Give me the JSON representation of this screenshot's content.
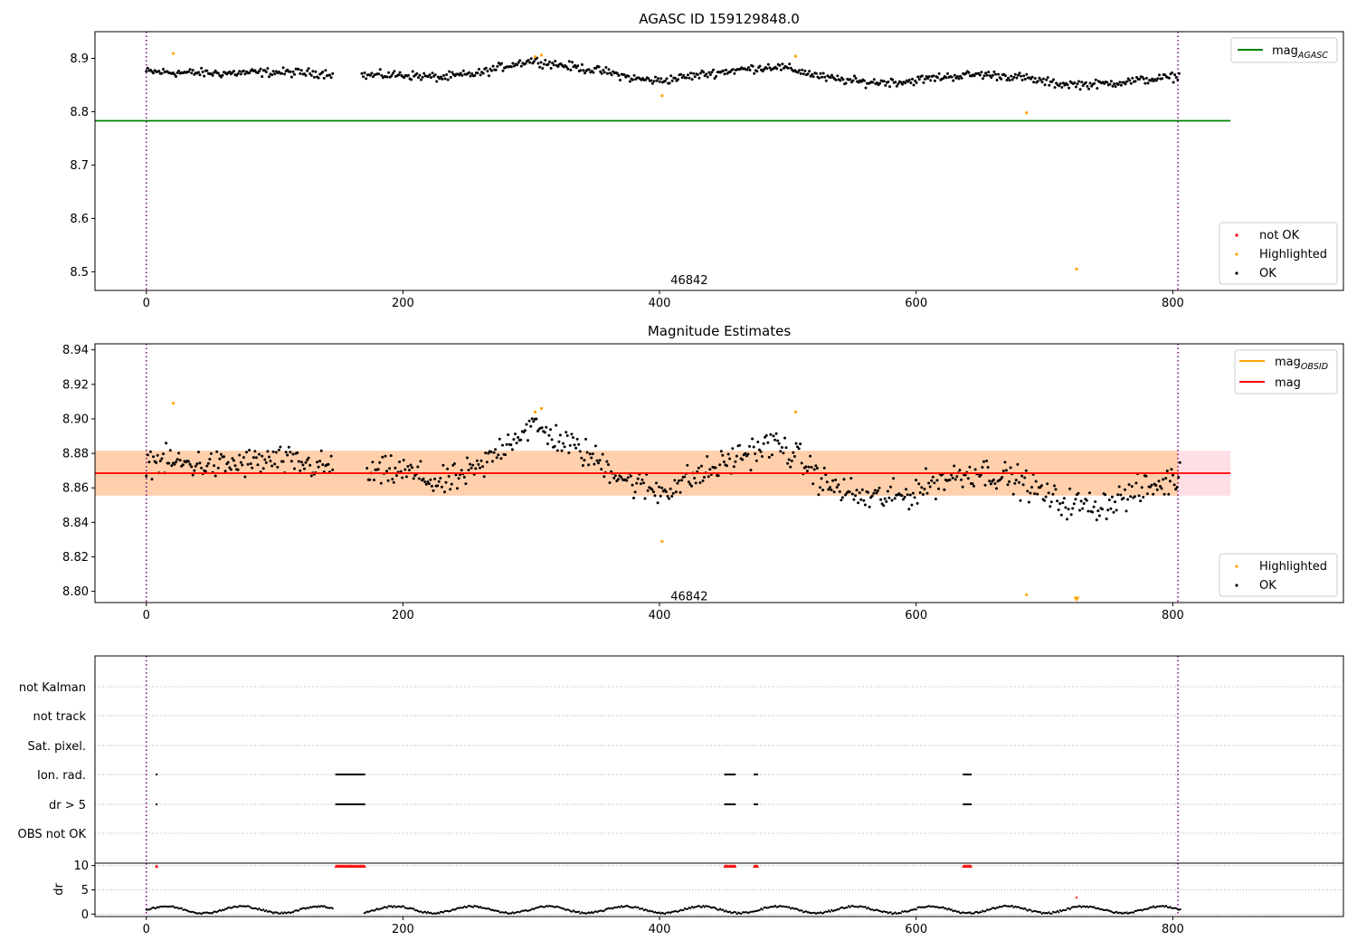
{
  "chart_data": [
    {
      "type": "scatter",
      "title": "AGASC ID 159129848.0",
      "xlabel": "",
      "ylabel": "",
      "xlim": [
        -40,
        933
      ],
      "ylim": [
        8.465,
        8.95
      ],
      "xticks": [
        0,
        200,
        400,
        600,
        800
      ],
      "yticks": [
        8.5,
        8.6,
        8.7,
        8.8,
        8.9
      ],
      "xtick_labels": [
        "0",
        "200",
        "400",
        "600",
        "800"
      ],
      "ytick_labels": [
        "8.5",
        "8.6",
        "8.7",
        "8.8",
        "8.9"
      ],
      "vlines": [
        0,
        804
      ],
      "annotation": {
        "text": "46842",
        "x": 402,
        "y": 8.48
      },
      "hline": {
        "name": "mag_AGASC",
        "y": 8.783,
        "x_range": [
          -40,
          845
        ],
        "color": "#008000"
      },
      "series": [
        {
          "name": "not OK",
          "color": "#ff0000",
          "points": []
        },
        {
          "name": "Highlighted",
          "color": "#ffa500",
          "points": [
            [
              21,
              8.909
            ],
            [
              303,
              8.903
            ],
            [
              308,
              8.906
            ],
            [
              402,
              8.83
            ],
            [
              506,
              8.904
            ],
            [
              686,
              8.798
            ],
            [
              725,
              8.505
            ]
          ]
        },
        {
          "name": "OK",
          "color": "#000000",
          "trend_segments": [
            [
              0,
              146
            ],
            [
              168,
              806
            ]
          ],
          "trend": [
            [
              0,
              8.875
            ],
            [
              30,
              8.873
            ],
            [
              60,
              8.872
            ],
            [
              100,
              8.874
            ],
            [
              140,
              8.872
            ],
            [
              170,
              8.868
            ],
            [
              200,
              8.869
            ],
            [
              230,
              8.864
            ],
            [
              260,
              8.872
            ],
            [
              280,
              8.886
            ],
            [
              300,
              8.896
            ],
            [
              330,
              8.885
            ],
            [
              360,
              8.874
            ],
            [
              380,
              8.862
            ],
            [
              400,
              8.858
            ],
            [
              420,
              8.865
            ],
            [
              440,
              8.872
            ],
            [
              460,
              8.878
            ],
            [
              490,
              8.885
            ],
            [
              510,
              8.876
            ],
            [
              530,
              8.863
            ],
            [
              560,
              8.855
            ],
            [
              590,
              8.856
            ],
            [
              620,
              8.865
            ],
            [
              650,
              8.87
            ],
            [
              680,
              8.865
            ],
            [
              710,
              8.852
            ],
            [
              740,
              8.851
            ],
            [
              770,
              8.858
            ],
            [
              806,
              8.866
            ]
          ],
          "scatter": 0.008,
          "step": 1.1
        }
      ],
      "legends": [
        {
          "position": "top-right",
          "entries": [
            {
              "label": "mag",
              "sub": "AGASC",
              "kind": "line",
              "color": "#008000"
            }
          ]
        },
        {
          "position": "lower-right",
          "entries": [
            {
              "label": "not OK",
              "kind": "dot",
              "color": "#ff0000"
            },
            {
              "label": "Highlighted",
              "kind": "dot",
              "color": "#ffa500"
            },
            {
              "label": "OK",
              "kind": "dot",
              "color": "#000000"
            }
          ]
        }
      ]
    },
    {
      "type": "scatter",
      "title": "Magnitude Estimates",
      "xlabel": "",
      "ylabel": "",
      "xlim": [
        -40,
        933
      ],
      "ylim": [
        8.7935,
        8.9435
      ],
      "xticks": [
        0,
        200,
        400,
        600,
        800
      ],
      "yticks": [
        8.8,
        8.82,
        8.84,
        8.86,
        8.88,
        8.9,
        8.92,
        8.94
      ],
      "xtick_labels": [
        "0",
        "200",
        "400",
        "600",
        "800"
      ],
      "ytick_labels": [
        "8.80",
        "8.82",
        "8.84",
        "8.86",
        "8.88",
        "8.90",
        "8.92",
        "8.94"
      ],
      "vlines": [
        0,
        804
      ],
      "annotation": {
        "text": "46842",
        "x": 402,
        "y": 8.797
      },
      "bands": [
        {
          "y_range": [
            8.8555,
            8.8815
          ],
          "x_range": [
            -40,
            845
          ],
          "color": "#ffc0cb",
          "alpha": 0.5
        },
        {
          "y_range": [
            8.8555,
            8.8815
          ],
          "x_range": [
            -40,
            804
          ],
          "color": "#ffa500",
          "alpha": 0.25
        }
      ],
      "hlines": [
        {
          "name": "mag_OBSID",
          "y": 8.8685,
          "x_range": [
            -40,
            804
          ],
          "color": "#ffa500"
        },
        {
          "name": "mag",
          "y": 8.8685,
          "x_range": [
            -40,
            845
          ],
          "color": "#ff0000"
        }
      ],
      "series": [
        {
          "name": "Highlighted",
          "color": "#ffa500",
          "points": [
            [
              21,
              8.909
            ],
            [
              303,
              8.904
            ],
            [
              308,
              8.906
            ],
            [
              402,
              8.829
            ],
            [
              506,
              8.904
            ],
            [
              686,
              8.798
            ]
          ],
          "markers_below_axis": [
            [
              725,
              8.7935
            ]
          ]
        },
        {
          "name": "OK",
          "color": "#000000",
          "trend_segments": [
            [
              0,
              146
            ],
            [
              172,
              806
            ]
          ],
          "trend": [
            [
              0,
              8.876
            ],
            [
              30,
              8.874
            ],
            [
              60,
              8.873
            ],
            [
              100,
              8.876
            ],
            [
              140,
              8.872
            ],
            [
              175,
              8.868
            ],
            [
              200,
              8.87
            ],
            [
              230,
              8.862
            ],
            [
              260,
              8.871
            ],
            [
              280,
              8.886
            ],
            [
              300,
              8.896
            ],
            [
              330,
              8.885
            ],
            [
              360,
              8.872
            ],
            [
              380,
              8.862
            ],
            [
              400,
              8.858
            ],
            [
              420,
              8.864
            ],
            [
              440,
              8.87
            ],
            [
              460,
              8.878
            ],
            [
              490,
              8.886
            ],
            [
              510,
              8.876
            ],
            [
              530,
              8.862
            ],
            [
              560,
              8.854
            ],
            [
              590,
              8.855
            ],
            [
              620,
              8.865
            ],
            [
              650,
              8.87
            ],
            [
              680,
              8.864
            ],
            [
              710,
              8.852
            ],
            [
              740,
              8.849
            ],
            [
              770,
              8.857
            ],
            [
              806,
              8.866
            ]
          ],
          "scatter": 0.0085,
          "step": 1.1
        }
      ],
      "legends": [
        {
          "position": "top-right",
          "entries": [
            {
              "label": "mag",
              "sub": "OBSID",
              "kind": "line",
              "color": "#ffa500"
            },
            {
              "label": "mag",
              "kind": "line",
              "color": "#ff0000"
            }
          ]
        },
        {
          "position": "lower-right",
          "entries": [
            {
              "label": "Highlighted",
              "kind": "dot",
              "color": "#ffa500"
            },
            {
              "label": "OK",
              "kind": "dot",
              "color": "#000000"
            }
          ]
        }
      ]
    },
    {
      "type": "scatter",
      "title": "",
      "xlabel": "",
      "ylabel": "",
      "xlim": [
        -40,
        933
      ],
      "categories": [
        "not Kalman",
        "not track",
        "Sat. pixel.",
        "Ion. rad.",
        "dr > 5",
        "OBS not OK"
      ],
      "vlines": [
        0,
        804
      ],
      "flags": [
        {
          "category": "Ion. rad.",
          "ranges": [
            [
              8,
              8
            ],
            [
              148,
              170
            ],
            [
              451,
              459
            ],
            [
              474,
              477
            ],
            [
              637,
              643
            ]
          ]
        },
        {
          "category": "dr > 5",
          "ranges": [
            [
              8,
              8
            ],
            [
              148,
              170
            ],
            [
              451,
              459
            ],
            [
              474,
              477
            ],
            [
              637,
              643
            ]
          ]
        }
      ]
    },
    {
      "type": "scatter",
      "title": "",
      "xlabel": "",
      "ylabel": "dr",
      "xlim": [
        -40,
        933
      ],
      "ylim": [
        -0.5,
        10.5
      ],
      "xticks": [
        0,
        200,
        400,
        600,
        800
      ],
      "yticks": [
        0,
        5,
        10
      ],
      "xtick_labels": [
        "0",
        "200",
        "400",
        "600",
        "800"
      ],
      "ytick_labels": [
        "0",
        "5",
        "10"
      ],
      "vlines": [
        0,
        804
      ],
      "series": [
        {
          "name": "dr",
          "color": "#000000",
          "segments": [
            [
              0,
              146
            ],
            [
              170,
              806
            ]
          ],
          "step": 1.1,
          "base": 0.9
        },
        {
          "name": "dr > 5",
          "color": "#ff0000",
          "marker": "triangle",
          "y": 9.9,
          "ranges": [
            [
              8,
              8
            ],
            [
              148,
              170
            ],
            [
              451,
              459
            ],
            [
              474,
              477
            ],
            [
              637,
              643
            ]
          ],
          "extra_points": [
            [
              725,
              3.4
            ]
          ]
        }
      ]
    }
  ]
}
